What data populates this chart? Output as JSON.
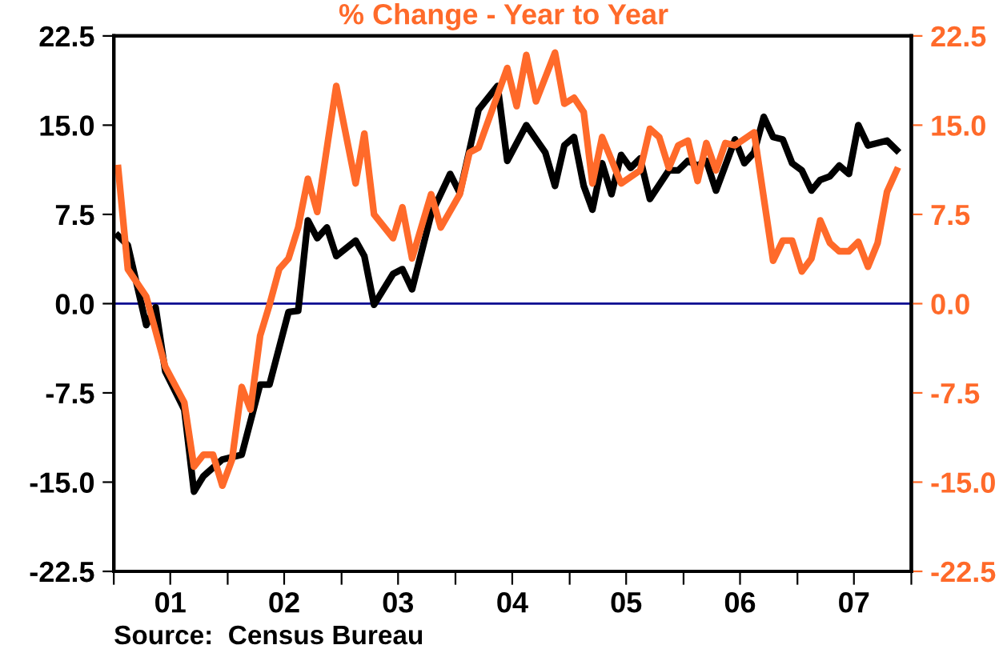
{
  "chart_data": {
    "type": "line",
    "title": "% Change - Year to Year",
    "annotations": [
      "Source:  Census Bureau"
    ],
    "xlim": [
      "2001-01-01",
      "2008-01-01"
    ],
    "xticks": [
      {
        "value": "2001-01-01",
        "label": null
      },
      {
        "value": "2001-07-01",
        "label": "01"
      },
      {
        "value": "2002-01-01",
        "label": null
      },
      {
        "value": "2002-07-01",
        "label": "02"
      },
      {
        "value": "2003-01-01",
        "label": null
      },
      {
        "value": "2003-07-01",
        "label": "03"
      },
      {
        "value": "2004-01-01",
        "label": null
      },
      {
        "value": "2004-07-01",
        "label": "04"
      },
      {
        "value": "2005-01-01",
        "label": null
      },
      {
        "value": "2005-07-01",
        "label": "05"
      },
      {
        "value": "2006-01-01",
        "label": null
      },
      {
        "value": "2006-07-01",
        "label": "06"
      },
      {
        "value": "2007-01-01",
        "label": null
      },
      {
        "value": "2007-07-01",
        "label": "07"
      },
      {
        "value": "2008-01-01",
        "label": null
      }
    ],
    "ylim": [
      -22.5,
      22.5
    ],
    "yticks": [
      {
        "value": -22.5,
        "label": "-22.5"
      },
      {
        "value": -15,
        "label": "-15.0"
      },
      {
        "value": -7.5,
        "label": "-7.5"
      },
      {
        "value": 0,
        "label": "0.0"
      },
      {
        "value": 7.5,
        "label": "7.5"
      },
      {
        "value": 15,
        "label": "15.0"
      },
      {
        "value": 22.5,
        "label": "22.5"
      }
    ],
    "y2lim": [
      -22.5,
      22.5
    ],
    "y2ticks": [
      {
        "value": -22.5,
        "label": "-22.5"
      },
      {
        "value": -15,
        "label": "-15.0"
      },
      {
        "value": -7.5,
        "label": "-7.5"
      },
      {
        "value": 0,
        "label": "0.0"
      },
      {
        "value": 7.5,
        "label": "7.5"
      },
      {
        "value": 15,
        "label": "15.0"
      },
      {
        "value": 22.5,
        "label": "22.5"
      }
    ],
    "grid": false,
    "marker": "none",
    "line_style": "solid",
    "ref_lines": [
      {
        "axis": "y",
        "value": 0,
        "label": null,
        "color": "#000090"
      }
    ],
    "series": [
      {
        "color": "#000000",
        "x": [
          "2001-01-15",
          "2001-02-15",
          "2001-04-15",
          "2001-05-15",
          "2001-06-15",
          "2001-08-15",
          "2001-09-15",
          "2001-10-15",
          "2001-12-15",
          "2002-02-15",
          "2002-04-15",
          "2002-05-15",
          "2002-07-15",
          "2002-08-15",
          "2002-09-15",
          "2002-10-15",
          "2002-11-15",
          "2002-12-15",
          "2003-02-15",
          "2003-03-15",
          "2003-04-15",
          "2003-06-15",
          "2003-07-15",
          "2003-08-15",
          "2003-10-15",
          "2003-12-15",
          "2004-01-15",
          "2004-03-15",
          "2004-05-15",
          "2004-06-15",
          "2004-08-15",
          "2004-10-15",
          "2004-11-15",
          "2004-12-15",
          "2005-01-15",
          "2005-02-15",
          "2005-03-15",
          "2005-04-15",
          "2005-05-15",
          "2005-06-15",
          "2005-07-15",
          "2005-08-15",
          "2005-09-15",
          "2005-11-15",
          "2005-12-15",
          "2006-01-15",
          "2006-02-15",
          "2006-03-15",
          "2006-04-15",
          "2006-06-15",
          "2006-07-15",
          "2006-08-15",
          "2006-09-15",
          "2006-10-15",
          "2006-11-15",
          "2006-12-15",
          "2007-01-15",
          "2007-02-15",
          "2007-03-15",
          "2007-04-15",
          "2007-05-15",
          "2007-06-15",
          "2007-07-15",
          "2007-08-15",
          "2007-10-15",
          "2007-11-15"
        ],
        "values": [
          5.7,
          4.9,
          -1.8,
          -0.3,
          -5.7,
          -8.9,
          -15.8,
          -14.5,
          -13.1,
          -12.7,
          -6.8,
          -6.8,
          -0.7,
          -0.6,
          7.0,
          5.5,
          6.4,
          4.0,
          5.3,
          4.0,
          -0.1,
          2.5,
          2.9,
          1.2,
          7.5,
          10.9,
          9.3,
          16.3,
          18.3,
          12.0,
          15.0,
          12.7,
          9.9,
          13.3,
          14.0,
          9.9,
          7.9,
          11.8,
          9.2,
          12.5,
          11.4,
          12.2,
          8.8,
          11.2,
          11.2,
          12.0,
          11.6,
          12.0,
          9.5,
          13.8,
          11.8,
          12.7,
          15.7,
          14.0,
          13.8,
          11.8,
          11.2,
          9.5,
          10.4,
          10.7,
          11.6,
          10.9,
          15.0,
          13.3,
          13.7,
          12.9
        ]
      },
      {
        "color": "#ff6a2a",
        "axis": "y2",
        "x": [
          "2001-01-15",
          "2001-02-15",
          "2001-04-15",
          "2001-06-15",
          "2001-08-15",
          "2001-09-15",
          "2001-10-15",
          "2001-11-15",
          "2001-12-15",
          "2002-01-15",
          "2002-02-15",
          "2002-03-15",
          "2002-04-15",
          "2002-05-15",
          "2002-06-15",
          "2002-07-15",
          "2002-08-15",
          "2002-09-15",
          "2002-10-15",
          "2002-12-15",
          "2003-02-15",
          "2003-03-15",
          "2003-04-15",
          "2003-06-15",
          "2003-07-15",
          "2003-08-15",
          "2003-10-15",
          "2003-11-15",
          "2004-01-15",
          "2004-02-15",
          "2004-03-15",
          "2004-06-15",
          "2004-07-15",
          "2004-08-15",
          "2004-09-15",
          "2004-11-15",
          "2004-12-15",
          "2005-01-15",
          "2005-02-15",
          "2005-03-15",
          "2005-04-15",
          "2005-06-15",
          "2005-08-15",
          "2005-09-15",
          "2005-10-15",
          "2005-11-15",
          "2005-12-15",
          "2006-01-15",
          "2006-02-15",
          "2006-03-15",
          "2006-04-15",
          "2006-05-15",
          "2006-06-15",
          "2006-08-15",
          "2006-10-15",
          "2006-11-15",
          "2006-12-15",
          "2007-01-15",
          "2007-02-15",
          "2007-03-15",
          "2007-04-15",
          "2007-05-15",
          "2007-06-15",
          "2007-07-15",
          "2007-08-15",
          "2007-09-15",
          "2007-10-15",
          "2007-11-15"
        ],
        "values": [
          11.4,
          2.9,
          0.6,
          -5.3,
          -8.3,
          -13.7,
          -12.7,
          -12.7,
          -15.3,
          -13.1,
          -7.0,
          -8.9,
          -2.7,
          -0.1,
          2.9,
          3.8,
          6.4,
          10.5,
          7.7,
          18.3,
          10.1,
          14.3,
          7.5,
          5.5,
          8.1,
          3.8,
          9.2,
          6.4,
          9.2,
          12.7,
          13.1,
          19.8,
          16.6,
          20.9,
          17.0,
          21.1,
          16.8,
          17.3,
          16.1,
          10.1,
          14.0,
          10.1,
          11.2,
          14.7,
          14.0,
          11.4,
          13.3,
          13.7,
          10.3,
          13.5,
          11.2,
          13.5,
          13.3,
          14.4,
          3.6,
          5.3,
          5.3,
          2.7,
          3.8,
          7.0,
          5.1,
          4.4,
          4.4,
          5.2,
          3.1,
          5.1,
          9.4,
          11.2
        ]
      }
    ]
  }
}
